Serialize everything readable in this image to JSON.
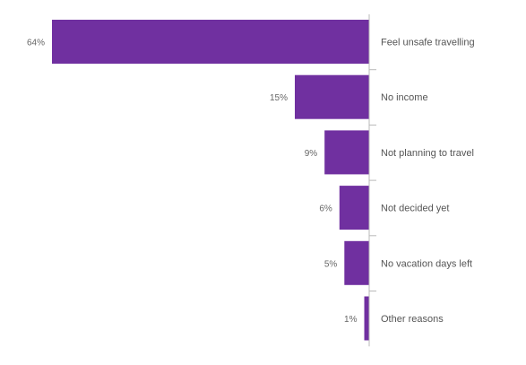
{
  "chart_data": {
    "type": "bar",
    "orientation": "horizontal",
    "categories": [
      "Feel unsafe travelling",
      "No income",
      "Not planning to travel",
      "Not decided yet",
      "No vacation days left",
      "Other reasons"
    ],
    "values": [
      64,
      15,
      9,
      6,
      5,
      1
    ],
    "value_labels": [
      "64%",
      "15%",
      "9%",
      "6%",
      "5%",
      "1%"
    ],
    "unit": "%",
    "xlim": [
      0,
      64
    ],
    "bar_color": "#7030a0",
    "grid": false,
    "legend": "none"
  }
}
